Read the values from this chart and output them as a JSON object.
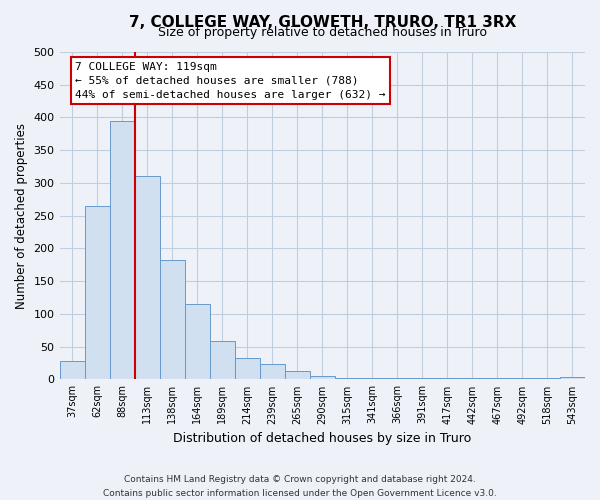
{
  "title": "7, COLLEGE WAY, GLOWETH, TRURO, TR1 3RX",
  "subtitle": "Size of property relative to detached houses in Truro",
  "xlabel": "Distribution of detached houses by size in Truro",
  "ylabel": "Number of detached properties",
  "bar_labels": [
    "37sqm",
    "62sqm",
    "88sqm",
    "113sqm",
    "138sqm",
    "164sqm",
    "189sqm",
    "214sqm",
    "239sqm",
    "265sqm",
    "290sqm",
    "315sqm",
    "341sqm",
    "366sqm",
    "391sqm",
    "417sqm",
    "442sqm",
    "467sqm",
    "492sqm",
    "518sqm",
    "543sqm"
  ],
  "bar_values": [
    28,
    265,
    395,
    310,
    183,
    115,
    58,
    32,
    24,
    13,
    6,
    2,
    2,
    2,
    2,
    2,
    2,
    2,
    2,
    2,
    3
  ],
  "bar_color": "#d0e0f0",
  "bar_edge_color": "#6699cc",
  "vline_x": 3.0,
  "vline_color": "#cc0000",
  "ylim": [
    0,
    500
  ],
  "yticks": [
    0,
    50,
    100,
    150,
    200,
    250,
    300,
    350,
    400,
    450,
    500
  ],
  "annotation_title": "7 COLLEGE WAY: 119sqm",
  "annotation_line1": "← 55% of detached houses are smaller (788)",
  "annotation_line2": "44% of semi-detached houses are larger (632) →",
  "annotation_box_color": "#ffffff",
  "annotation_box_edge": "#cc0000",
  "footer_line1": "Contains HM Land Registry data © Crown copyright and database right 2024.",
  "footer_line2": "Contains public sector information licensed under the Open Government Licence v3.0.",
  "background_color": "#eef2f8",
  "grid_color": "#c0cfe0"
}
